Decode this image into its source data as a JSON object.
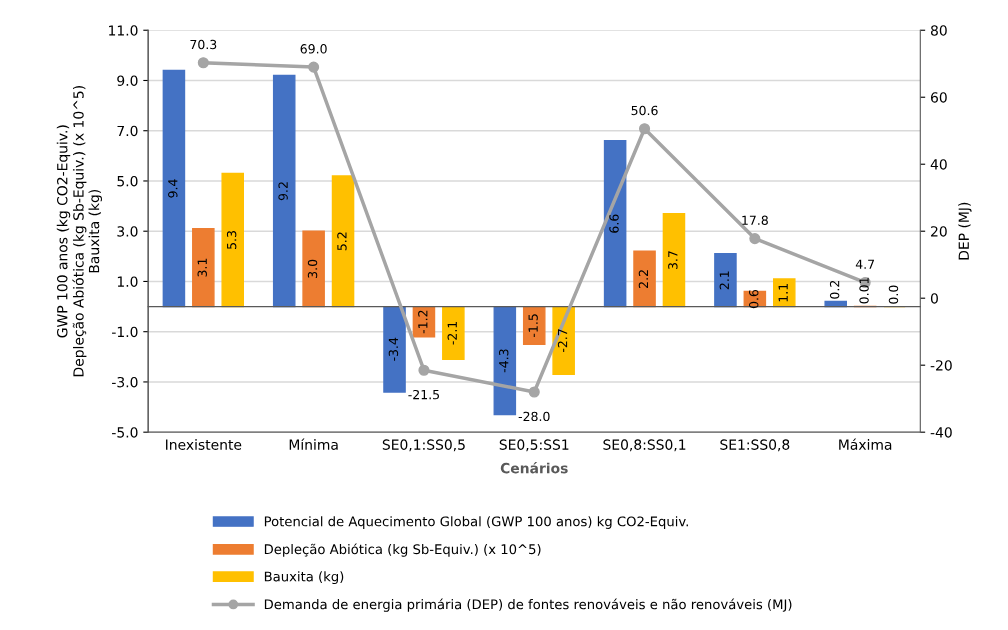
{
  "chart_data": {
    "type": "bar",
    "xlabel": "Cenários",
    "ylabel": "GWP 100 anos (kg CO2-Equiv.)\nDepleção Abiótica (kg Sb-Equiv.) (x 10^5)\nBauxita (kg)",
    "y2label": "DEP (MJ)",
    "categories": [
      "Inexistente",
      "Mínima",
      "SE0,1:SS0,5",
      "SE0,5:SS1",
      "SE0,8:SS0,1",
      "SE1:SS0,8",
      "Máxima"
    ],
    "series": [
      {
        "name": "Potencial de Aquecimento Global (GWP 100 anos) kg CO2-Equiv.",
        "color": "#4472c4",
        "values": [
          9.4,
          9.2,
          -3.4,
          -4.3,
          6.6,
          2.1,
          0.2
        ],
        "value_labels": [
          "9.4",
          "9.2",
          "-3.4",
          "-4.3",
          "6.6",
          "2.1",
          "0.2"
        ]
      },
      {
        "name": "Depleção Abiótica (kg Sb-Equiv.) (x 10^5)",
        "color": "#ed7d31",
        "values": [
          3.1,
          3.0,
          -1.2,
          -1.5,
          2.2,
          0.6,
          0.01
        ],
        "value_labels": [
          "3.1",
          "3.0",
          "-1.2",
          "-1.5",
          "2.2",
          "0.6",
          "0.01"
        ]
      },
      {
        "name": "Bauxita (kg)",
        "color": "#ffc000",
        "values": [
          5.3,
          5.2,
          -2.1,
          -2.7,
          3.7,
          1.1,
          0.0
        ],
        "value_labels": [
          "5.3",
          "5.2",
          "-2.1",
          "-2.7",
          "3.7",
          "1.1",
          "0.0"
        ]
      },
      {
        "name": "Demanda de energia primária (DEP) de fontes renováveis e não renováveis (MJ)",
        "type": "line",
        "axis": "y2",
        "color": "#a5a5a5",
        "marker": "circle",
        "values": [
          70.3,
          69.0,
          -21.5,
          -28.0,
          50.6,
          17.8,
          4.7
        ],
        "value_labels": [
          "70.3",
          "69.0",
          "-21.5",
          "-28.0",
          "50.6",
          "17.8",
          "4.7"
        ]
      }
    ],
    "ylim": [
      -5,
      11
    ],
    "yticks": [
      {
        "value": -5,
        "label": "-5.0"
      },
      {
        "value": -3,
        "label": "-3.0"
      },
      {
        "value": -1,
        "label": "-1.0"
      },
      {
        "value": 1,
        "label": "1.0"
      },
      {
        "value": 3,
        "label": "3.0"
      },
      {
        "value": 5,
        "label": "5.0"
      },
      {
        "value": 7,
        "label": "7.0"
      },
      {
        "value": 9,
        "label": "9.0"
      },
      {
        "value": 11,
        "label": "11.0"
      }
    ],
    "y2lim": [
      -40,
      80
    ],
    "y2ticks": [
      -40,
      -20,
      0,
      20,
      40,
      60,
      80
    ],
    "grid": "y",
    "legend": "bottom"
  }
}
